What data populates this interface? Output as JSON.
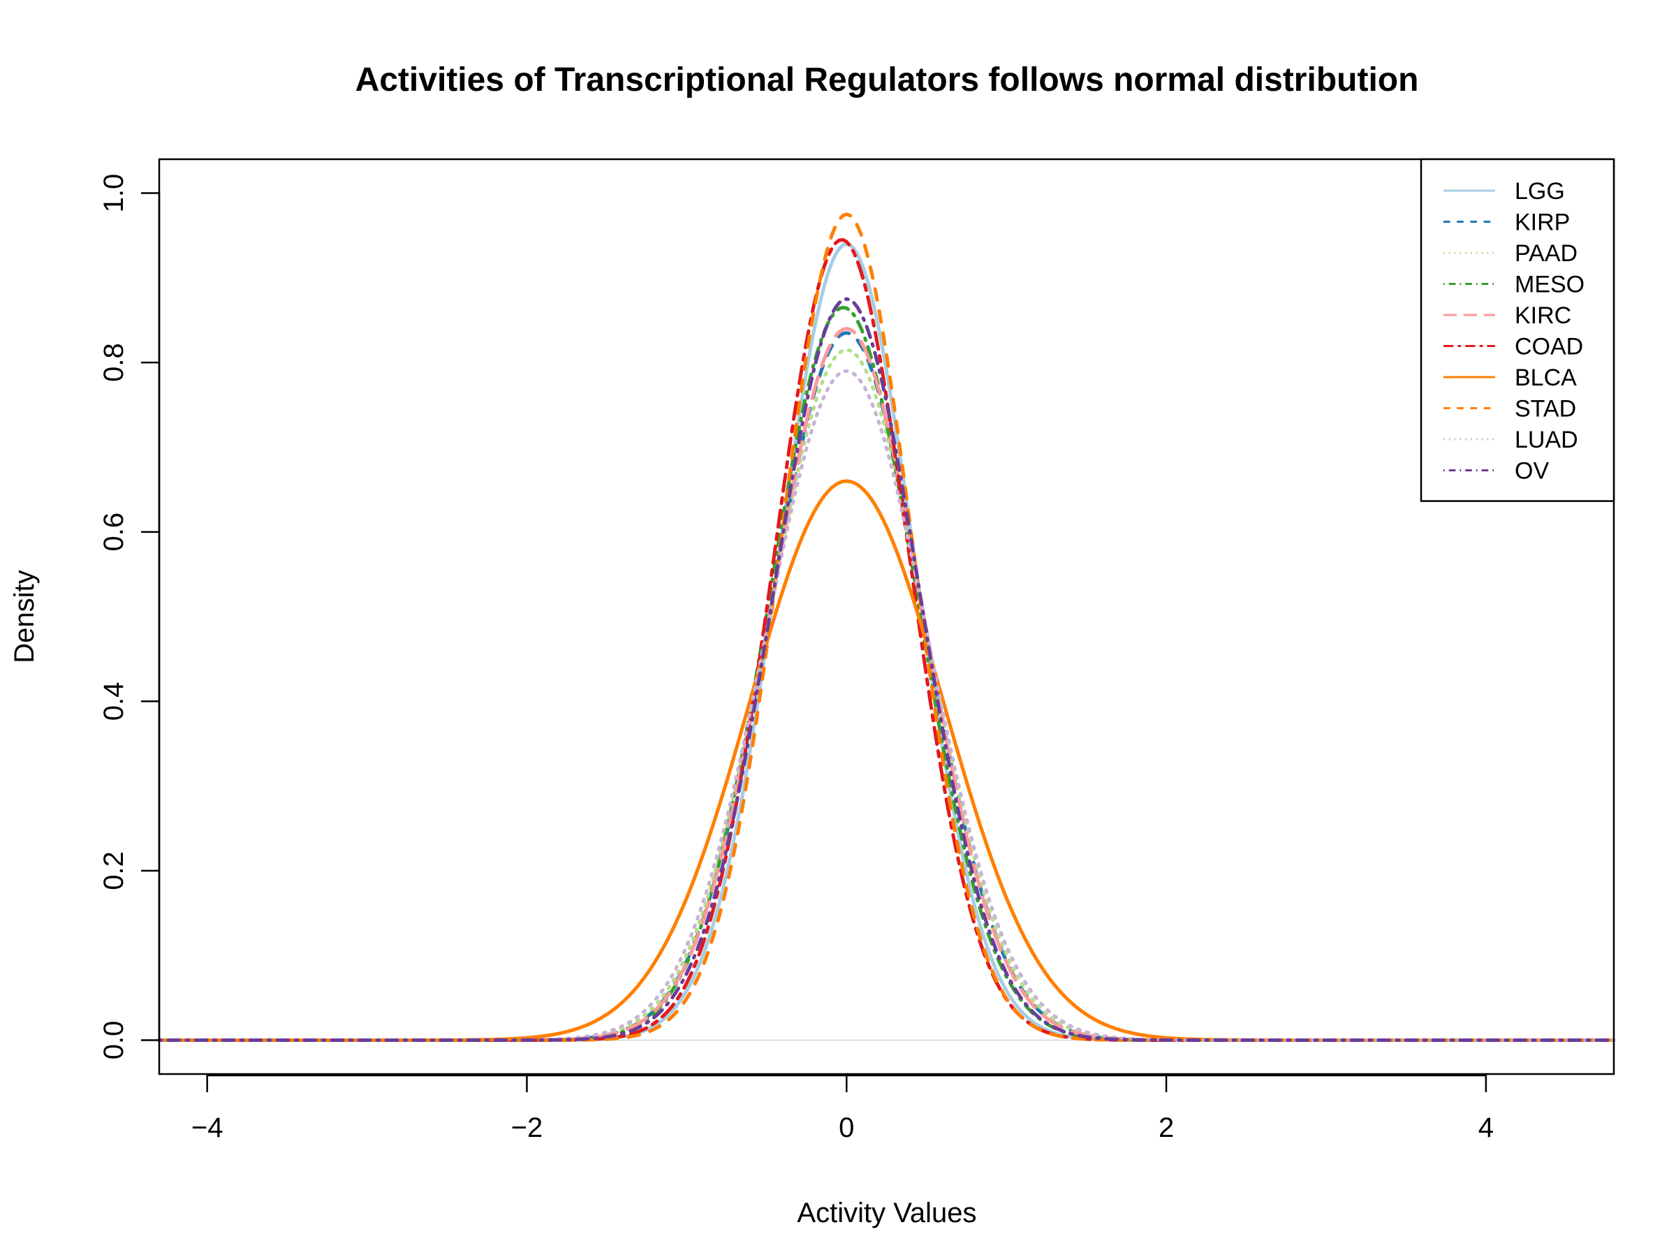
{
  "chart_data": {
    "type": "line",
    "title": "Activities of Transcriptional Regulators follows normal distribution",
    "xlabel": "Activity Values",
    "ylabel": "Density",
    "xlim": [
      -4.3,
      4.8
    ],
    "ylim": [
      -0.04,
      1.04
    ],
    "xticks": [
      -4,
      -2,
      0,
      2,
      4
    ],
    "xtick_labels": [
      "−4",
      "−2",
      "0",
      "2",
      "4"
    ],
    "yticks": [
      0.0,
      0.2,
      0.4,
      0.6,
      0.8,
      1.0
    ],
    "ytick_labels": [
      "0.0",
      "0.2",
      "0.4",
      "0.6",
      "0.8",
      "1.0"
    ],
    "grid": false,
    "baseline": 0,
    "legend_position": "top-right",
    "series": [
      {
        "name": "LGG",
        "color": "#A6CEE3",
        "dash": "solid",
        "mean": 0.0,
        "peak": 0.94
      },
      {
        "name": "KIRP",
        "color": "#1F78B4",
        "dash": "dashed",
        "mean": 0.0,
        "peak": 0.835
      },
      {
        "name": "PAAD",
        "color": "#B2DF8A",
        "dash": "dotted",
        "mean": 0.0,
        "peak": 0.815
      },
      {
        "name": "MESO",
        "color": "#33A02C",
        "dash": "dotdash",
        "mean": -0.02,
        "peak": 0.865
      },
      {
        "name": "KIRC",
        "color": "#FB9A99",
        "dash": "longdash",
        "mean": 0.0,
        "peak": 0.84
      },
      {
        "name": "COAD",
        "color": "#E31A1C",
        "dash": "twodash",
        "mean": -0.03,
        "peak": 0.945
      },
      {
        "name": "BLCA",
        "color": "#FF7F00",
        "dash": "solid",
        "mean": 0.0,
        "peak": 0.66
      },
      {
        "name": "STAD",
        "color": "#FF7F00",
        "dash": "dashed",
        "mean": 0.0,
        "peak": 0.975
      },
      {
        "name": "LUAD",
        "color": "#CAB2D6",
        "dash": "dotted",
        "mean": 0.0,
        "peak": 0.79
      },
      {
        "name": "OV",
        "color": "#6A3D9A",
        "dash": "dotdash",
        "mean": 0.0,
        "peak": 0.875
      }
    ]
  }
}
